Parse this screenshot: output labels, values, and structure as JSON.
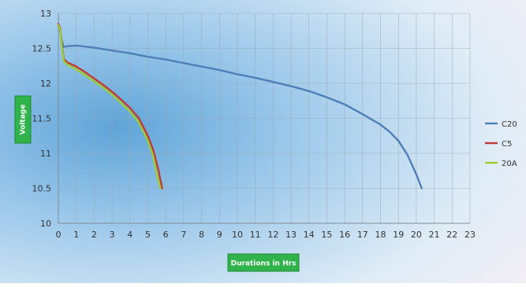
{
  "chart_data": {
    "type": "line",
    "title": "",
    "xlabel": "Durations in Hrs",
    "ylabel": "Voltage",
    "xlim": [
      0,
      23
    ],
    "ylim": [
      10,
      13
    ],
    "x_ticks": [
      "0",
      "1",
      "2",
      "3",
      "4",
      "5",
      "6",
      "7",
      "8",
      "9",
      "10",
      "11",
      "12",
      "13",
      "14",
      "15",
      "16",
      "17",
      "18",
      "19",
      "20",
      "21",
      "22",
      "23"
    ],
    "y_ticks": [
      "10",
      "10.5",
      "11",
      "11.5",
      "12",
      "12.5",
      "13"
    ],
    "grid": true,
    "legend_position": "right",
    "series": [
      {
        "name": "C20",
        "color": "#4f7fb8",
        "points": [
          [
            0.0,
            12.82
          ],
          [
            0.1,
            12.74
          ],
          [
            0.2,
            12.6
          ],
          [
            0.3,
            12.52
          ],
          [
            0.5,
            12.53
          ],
          [
            1,
            12.54
          ],
          [
            2,
            12.51
          ],
          [
            3,
            12.47
          ],
          [
            4,
            12.43
          ],
          [
            5,
            12.38
          ],
          [
            6,
            12.34
          ],
          [
            7,
            12.29
          ],
          [
            8,
            12.24
          ],
          [
            9,
            12.19
          ],
          [
            10,
            12.13
          ],
          [
            11,
            12.08
          ],
          [
            12,
            12.02
          ],
          [
            13,
            11.96
          ],
          [
            14,
            11.89
          ],
          [
            15,
            11.8
          ],
          [
            16,
            11.7
          ],
          [
            17,
            11.56
          ],
          [
            18,
            11.41
          ],
          [
            18.5,
            11.31
          ],
          [
            19,
            11.18
          ],
          [
            19.5,
            10.98
          ],
          [
            20,
            10.7
          ],
          [
            20.3,
            10.5
          ]
        ]
      },
      {
        "name": "C5",
        "color": "#c0393b",
        "points": [
          [
            0.0,
            12.85
          ],
          [
            0.1,
            12.78
          ],
          [
            0.2,
            12.55
          ],
          [
            0.3,
            12.35
          ],
          [
            0.5,
            12.3
          ],
          [
            1,
            12.24
          ],
          [
            1.5,
            12.16
          ],
          [
            2,
            12.07
          ],
          [
            2.5,
            11.98
          ],
          [
            3,
            11.88
          ],
          [
            3.5,
            11.77
          ],
          [
            4,
            11.65
          ],
          [
            4.5,
            11.5
          ],
          [
            5,
            11.25
          ],
          [
            5.3,
            11.05
          ],
          [
            5.6,
            10.75
          ],
          [
            5.8,
            10.5
          ]
        ]
      },
      {
        "name": "20A",
        "color": "#9acd32",
        "points": [
          [
            0.0,
            12.83
          ],
          [
            0.1,
            12.76
          ],
          [
            0.2,
            12.52
          ],
          [
            0.3,
            12.32
          ],
          [
            0.5,
            12.27
          ],
          [
            1,
            12.2
          ],
          [
            1.5,
            12.12
          ],
          [
            2,
            12.03
          ],
          [
            2.5,
            11.94
          ],
          [
            3,
            11.84
          ],
          [
            3.5,
            11.72
          ],
          [
            4,
            11.6
          ],
          [
            4.5,
            11.44
          ],
          [
            5,
            11.18
          ],
          [
            5.3,
            10.96
          ],
          [
            5.5,
            10.7
          ],
          [
            5.7,
            10.5
          ]
        ]
      }
    ]
  }
}
